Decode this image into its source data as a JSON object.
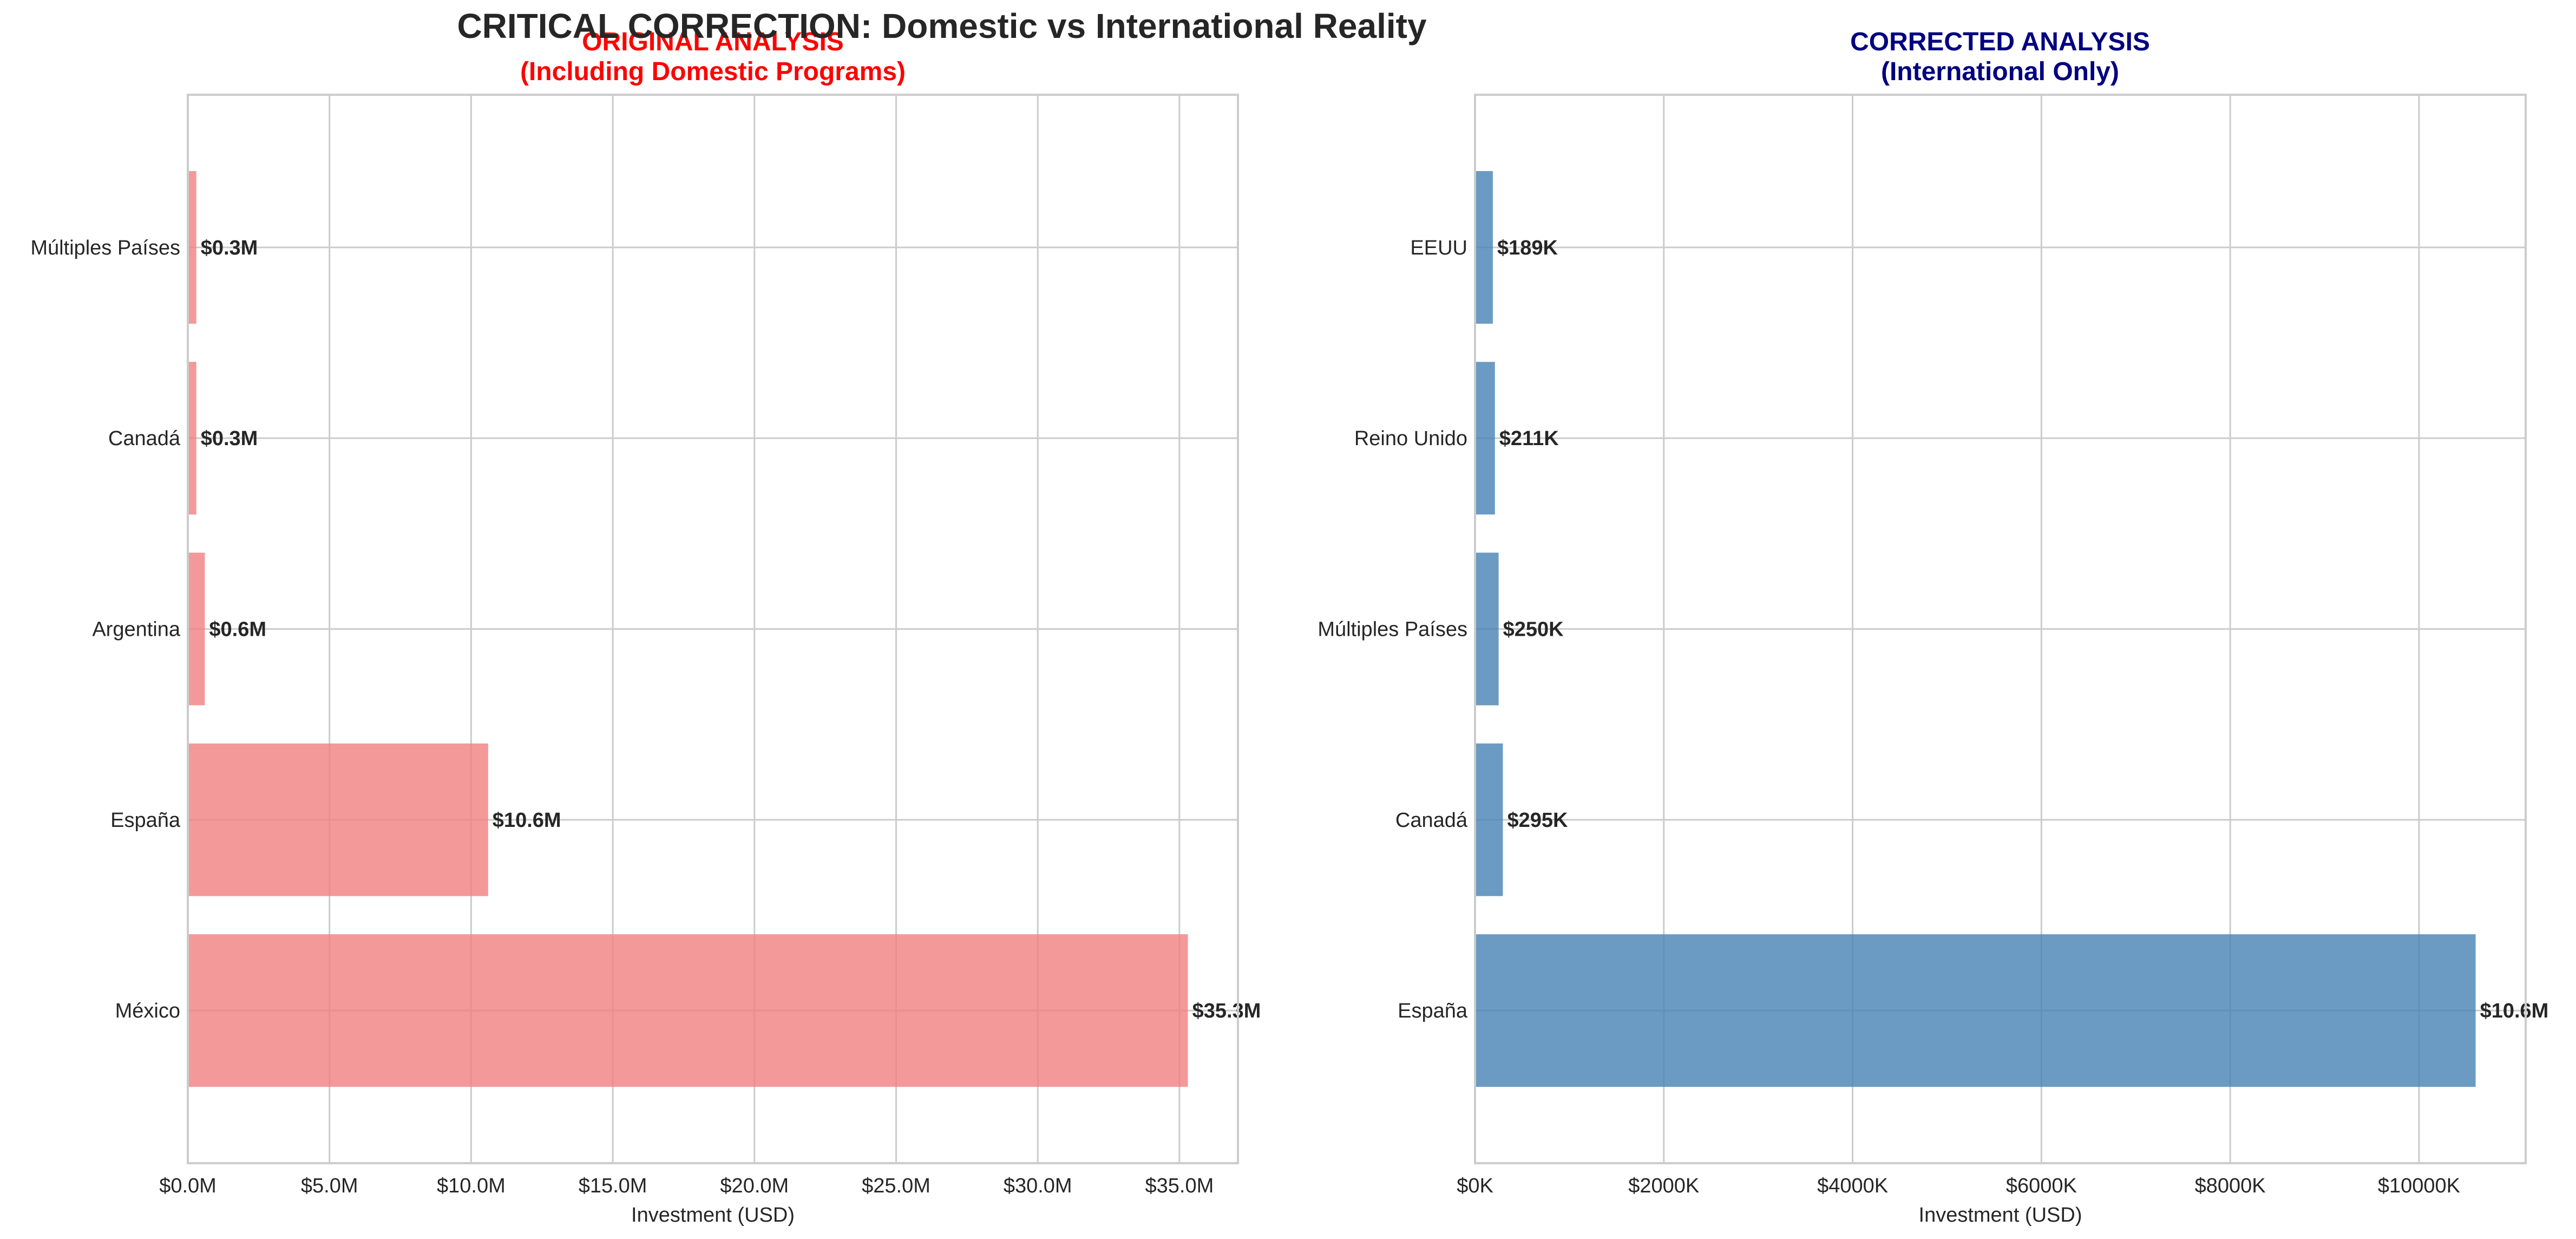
{
  "suptitle": "CRITICAL CORRECTION: Domestic vs International Reality",
  "colors": {
    "left_bar": "#F08080",
    "right_bar": "#4682B4",
    "left_title": "#FF0000",
    "right_title": "#000080",
    "text": "#262626",
    "grid": "#CCCCCC",
    "frame": "#CCCCCC"
  },
  "chart_data": [
    {
      "type": "bar",
      "orientation": "horizontal",
      "title_lines": [
        "ORIGINAL ANALYSIS",
        "(Including Domestic Programs)"
      ],
      "categories": [
        "México",
        "España",
        "Argentina",
        "Canadá",
        "Múltiples Países"
      ],
      "values": [
        35.3,
        10.6,
        0.6,
        0.3,
        0.3
      ],
      "value_unit": "USD millions",
      "data_labels": [
        "$35.3M",
        "$10.6M",
        "$0.6M",
        "$0.3M",
        "$0.3M"
      ],
      "xlabel": "Investment (USD)",
      "xlim": [
        0,
        37.065
      ],
      "xticks": [
        0,
        5,
        10,
        15,
        20,
        25,
        30,
        35
      ],
      "xtick_labels": [
        "$0.0M",
        "$5.0M",
        "$10.0M",
        "$15.0M",
        "$20.0M",
        "$25.0M",
        "$30.0M",
        "$35.0M"
      ],
      "grid": true
    },
    {
      "type": "bar",
      "orientation": "horizontal",
      "title_lines": [
        "CORRECTED ANALYSIS",
        "(International Only)"
      ],
      "categories": [
        "España",
        "Canadá",
        "Múltiples Países",
        "Reino Unido",
        "EEUU"
      ],
      "values": [
        10600,
        295,
        250,
        211,
        189
      ],
      "value_unit": "USD thousands",
      "data_labels": [
        "$10.6M",
        "$295K",
        "$250K",
        "$211K",
        "$189K"
      ],
      "xlabel": "Investment (USD)",
      "xlim": [
        0,
        11130
      ],
      "xticks": [
        0,
        2000,
        4000,
        6000,
        8000,
        10000
      ],
      "xtick_labels": [
        "$0K",
        "$2000K",
        "$4000K",
        "$6000K",
        "$8000K",
        "$10000K"
      ],
      "grid": true
    }
  ]
}
